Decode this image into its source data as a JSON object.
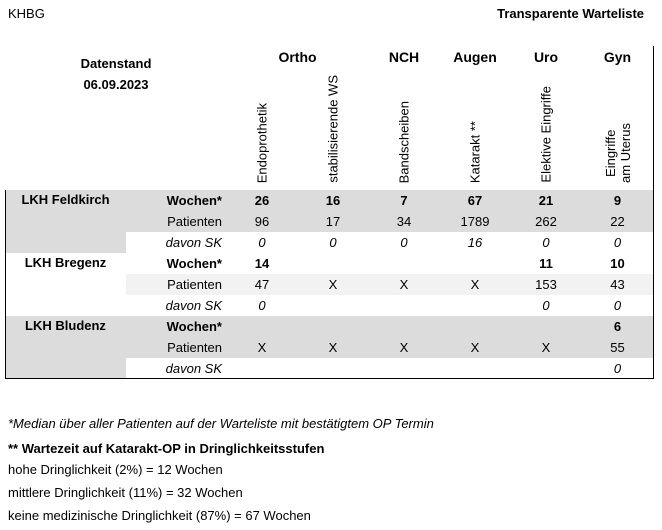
{
  "header": {
    "org": "KHBG",
    "title": "Transparente Warteliste",
    "stand_label": "Datenstand",
    "stand_date": "06.09.2023"
  },
  "groups": [
    "Ortho",
    "NCH",
    "Augen",
    "Uro",
    "Gyn"
  ],
  "columns": [
    "Endoprothetik",
    "stabilisierende WS",
    "Bandscheiben",
    "Katarakt **",
    "Elektive Eingriffe",
    "Eingriffe\nam Uterus"
  ],
  "row_labels": {
    "wochen": "Wochen*",
    "patienten": "Patienten",
    "davon": "davon SK"
  },
  "hospitals": [
    {
      "name": "LKH Feldkirch",
      "wochen": [
        "26",
        "16",
        "7",
        "67",
        "21",
        "9"
      ],
      "patienten": [
        "96",
        "17",
        "34",
        "1789",
        "262",
        "22"
      ],
      "davon": [
        "0",
        "0",
        "0",
        "16",
        "0",
        "0"
      ]
    },
    {
      "name": "LKH Bregenz",
      "wochen": [
        "14",
        "",
        "",
        "",
        "11",
        "10"
      ],
      "patienten": [
        "47",
        "X",
        "X",
        "X",
        "153",
        "43"
      ],
      "davon": [
        "0",
        "",
        "",
        "",
        "0",
        "0"
      ]
    },
    {
      "name": "LKH Bludenz",
      "wochen": [
        "",
        "",
        "",
        "",
        "",
        "6"
      ],
      "patienten": [
        "X",
        "X",
        "X",
        "X",
        "X",
        "55"
      ],
      "davon": [
        "",
        "",
        "",
        "",
        "",
        "0"
      ]
    }
  ],
  "footnotes": {
    "median": "*Median über aller Patienten auf der Warteliste mit bestätigtem OP Termin",
    "katarakt_title": "** Wartezeit auf Katarakt-OP in Dringlichkeitsstufen",
    "hoch": "hohe Dringlichkeit (2%) = 12 Wochen",
    "mittel": "mittlere Dringlichkeit (11%) = 32 Wochen",
    "keine": "keine medizinische Dringlichkeit (87%) = 67 Wochen"
  }
}
